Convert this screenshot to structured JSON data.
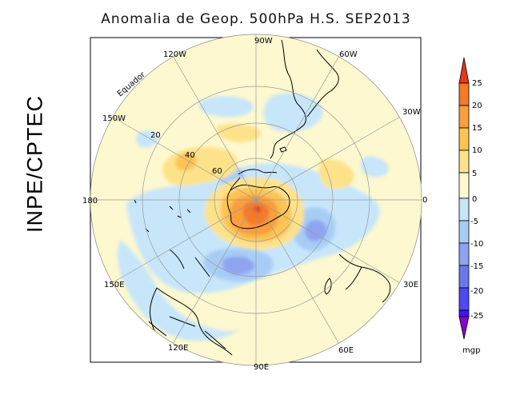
{
  "title": "Anomalia de Geop. 500hPa H.S. SEP2013",
  "credit": "INPE/CPTEC",
  "map": {
    "projection": "polar-stereographic-south",
    "longitude_labels": {
      "lon_0": "0",
      "lon_30w": "30W",
      "lon_60w": "60W",
      "lon_90w": "90W",
      "lon_120w": "120W",
      "lon_150w": "150W",
      "lon_180": "180",
      "lon_150e": "150E",
      "lon_120e": "120E",
      "lon_90e": "90E",
      "lon_60e": "60E",
      "lon_30e": "30E"
    },
    "latitude_labels": {
      "equator": "Equador",
      "lat_20": "20",
      "lat_40": "40",
      "lat_60": "60"
    }
  },
  "legend": {
    "unit": "mgp",
    "ticks": [
      "25",
      "20",
      "15",
      "10",
      "5",
      "0",
      "-5",
      "-10",
      "-15",
      "-20",
      "-25"
    ],
    "colors": {
      "n30": "#8a00cc",
      "n25": "#3a1aee",
      "n20": "#4e4af0",
      "n15": "#6a78ee",
      "n10": "#8ea4f0",
      "n5": "#a8cdf5",
      "z0": "#c7e6fa",
      "p0": "#fdf8cf",
      "p5": "#fde28a",
      "p10": "#fdc354",
      "p15": "#fb9e3e",
      "p20": "#f57a25",
      "p25": "#e43a17"
    }
  }
}
